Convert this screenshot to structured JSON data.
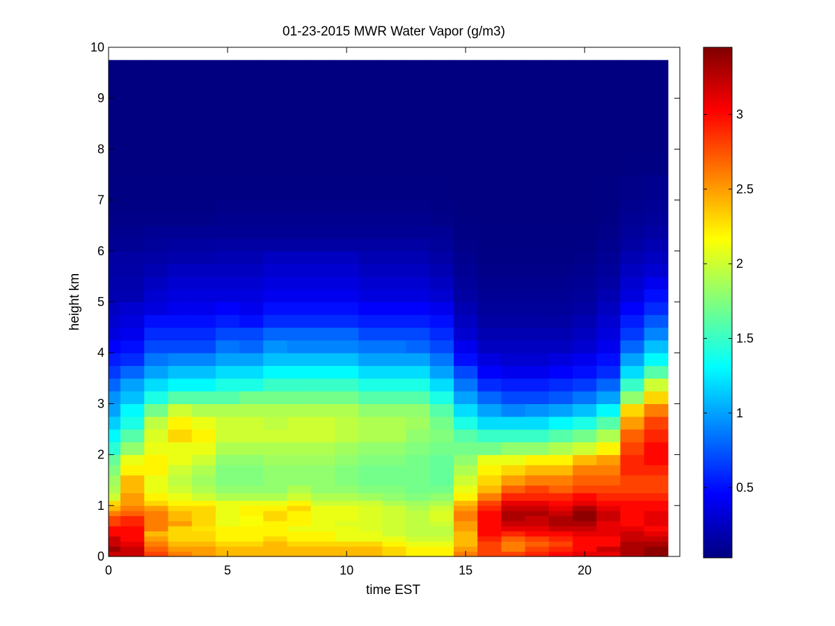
{
  "chart_data": {
    "type": "heatmap",
    "title": "01-23-2015 MWR Water Vapor (g/m3)",
    "xlabel": "time EST",
    "ylabel": "height km",
    "xlim": [
      0,
      24
    ],
    "ylim": [
      0,
      10
    ],
    "x_ticks": [
      0,
      5,
      10,
      15,
      20
    ],
    "y_ticks": [
      0,
      1,
      2,
      3,
      4,
      5,
      6,
      7,
      8,
      9,
      10
    ],
    "colorbar": {
      "colormap": "jet",
      "range": [
        0.03,
        3.45
      ],
      "ticks": [
        0.5,
        1,
        1.5,
        2,
        2.5,
        3
      ]
    },
    "time_edges": [
      0,
      0.5,
      1.5,
      2.5,
      3.5,
      4.5,
      5.5,
      6.5,
      7.5,
      8.5,
      9.5,
      10.5,
      11.5,
      12.5,
      13.5,
      14.5,
      15.5,
      16.5,
      17.5,
      18.5,
      19.5,
      20.5,
      21.5,
      22.5,
      23.5
    ],
    "height_km": [
      0,
      0.1,
      0.2,
      0.3,
      0.4,
      0.5,
      0.6,
      0.7,
      0.8,
      0.9,
      1.0,
      1.1,
      1.25,
      1.4,
      1.6,
      1.8,
      2.0,
      2.25,
      2.5,
      2.75,
      3.0,
      3.25,
      3.5,
      3.75,
      4.0,
      4.25,
      4.5,
      4.75,
      5.0,
      5.25,
      5.5,
      5.75,
      6.0,
      6.25,
      6.5,
      6.75,
      7.0,
      7.5,
      8.0,
      8.5,
      9.0,
      9.75
    ],
    "values": [
      [
        3.2,
        3.35,
        3.2,
        3.2,
        3.0,
        3.0,
        2.8,
        2.8,
        2.6,
        2.4,
        2.3,
        2.0,
        1.9,
        1.85,
        1.75,
        1.65,
        1.45,
        1.3,
        1.15,
        1.0,
        0.95,
        0.8,
        0.65,
        0.55,
        0.45,
        0.35,
        0.3,
        0.25,
        0.2,
        0.18,
        0.16,
        0.15,
        0.1,
        0.08,
        0.06,
        0.05,
        0.04,
        0.03,
        0.03,
        0.03,
        0.03
      ],
      [
        3.2,
        3.2,
        3.1,
        3.0,
        3.0,
        3.0,
        2.9,
        2.9,
        2.7,
        2.6,
        2.5,
        2.5,
        2.4,
        2.4,
        2.2,
        2.1,
        1.8,
        1.6,
        1.4,
        1.3,
        1.1,
        1.0,
        0.8,
        0.6,
        0.5,
        0.4,
        0.35,
        0.3,
        0.2,
        0.18,
        0.16,
        0.15,
        0.1,
        0.08,
        0.06,
        0.05,
        0.04,
        0.03,
        0.03,
        0.03,
        0.03
      ],
      [
        2.8,
        2.7,
        2.6,
        2.5,
        2.4,
        2.6,
        2.6,
        2.6,
        2.6,
        2.5,
        2.3,
        2.2,
        2.1,
        2.1,
        2.2,
        2.2,
        2.1,
        2.05,
        1.95,
        1.7,
        1.4,
        1.2,
        1.0,
        0.85,
        0.7,
        0.6,
        0.5,
        0.35,
        0.3,
        0.25,
        0.2,
        0.16,
        0.12,
        0.1,
        0.06,
        0.05,
        0.04,
        0.03,
        0.03,
        0.03,
        0.03
      ],
      [
        2.6,
        2.5,
        2.4,
        2.3,
        2.3,
        2.3,
        2.5,
        2.4,
        2.4,
        2.3,
        2.2,
        2.1,
        2.0,
        1.95,
        2.0,
        2.1,
        2.1,
        2.3,
        2.2,
        2.0,
        1.6,
        1.3,
        1.1,
        0.9,
        0.7,
        0.6,
        0.5,
        0.4,
        0.35,
        0.3,
        0.25,
        0.18,
        0.14,
        0.1,
        0.06,
        0.05,
        0.04,
        0.03,
        0.03,
        0.03,
        0.03
      ],
      [
        2.5,
        2.5,
        2.4,
        2.3,
        2.3,
        2.25,
        2.3,
        2.3,
        2.3,
        2.3,
        2.2,
        2.0,
        1.9,
        1.85,
        1.9,
        2.0,
        2.1,
        2.2,
        2.1,
        1.9,
        1.6,
        1.3,
        1.1,
        0.9,
        0.7,
        0.6,
        0.5,
        0.4,
        0.35,
        0.3,
        0.25,
        0.18,
        0.14,
        0.1,
        0.06,
        0.05,
        0.04,
        0.03,
        0.03,
        0.03,
        0.03
      ],
      [
        2.4,
        2.4,
        2.3,
        2.2,
        2.2,
        2.2,
        2.1,
        2.1,
        2.1,
        2.1,
        2.1,
        1.9,
        1.8,
        1.75,
        1.75,
        1.8,
        1.9,
        2.0,
        2.0,
        1.9,
        1.6,
        1.4,
        1.2,
        1.0,
        0.85,
        0.7,
        0.55,
        0.45,
        0.35,
        0.3,
        0.25,
        0.2,
        0.15,
        0.1,
        0.08,
        0.06,
        0.04,
        0.03,
        0.03,
        0.03,
        0.03
      ],
      [
        2.4,
        2.4,
        2.3,
        2.2,
        2.2,
        2.2,
        2.15,
        2.15,
        2.2,
        2.2,
        2.1,
        1.9,
        1.8,
        1.75,
        1.75,
        1.8,
        1.9,
        2.0,
        2.0,
        1.9,
        1.7,
        1.4,
        1.2,
        1.0,
        0.8,
        0.7,
        0.5,
        0.4,
        0.35,
        0.3,
        0.25,
        0.2,
        0.15,
        0.1,
        0.08,
        0.06,
        0.04,
        0.03,
        0.03,
        0.03,
        0.03
      ],
      [
        2.4,
        2.4,
        2.4,
        2.3,
        2.2,
        2.2,
        2.2,
        2.3,
        2.3,
        2.2,
        2.1,
        1.9,
        1.8,
        1.8,
        1.8,
        1.85,
        1.9,
        2.0,
        1.95,
        1.9,
        1.7,
        1.5,
        1.3,
        1.1,
        0.95,
        0.8,
        0.6,
        0.5,
        0.4,
        0.35,
        0.3,
        0.25,
        0.15,
        0.1,
        0.08,
        0.06,
        0.04,
        0.03,
        0.03,
        0.03,
        0.03
      ],
      [
        2.4,
        2.4,
        2.3,
        2.2,
        2.2,
        2.1,
        2.2,
        2.2,
        2.2,
        2.3,
        2.2,
        2.0,
        1.9,
        1.8,
        1.8,
        1.85,
        1.9,
        2.0,
        2.0,
        1.9,
        1.7,
        1.5,
        1.3,
        1.1,
        0.9,
        0.8,
        0.6,
        0.5,
        0.4,
        0.35,
        0.3,
        0.25,
        0.15,
        0.1,
        0.08,
        0.06,
        0.04,
        0.03,
        0.03,
        0.03,
        0.03
      ],
      [
        2.4,
        2.4,
        2.3,
        2.2,
        2.2,
        2.1,
        2.1,
        2.1,
        2.1,
        2.1,
        2.0,
        1.9,
        1.8,
        1.8,
        1.8,
        1.85,
        1.9,
        2.0,
        2.0,
        1.9,
        1.7,
        1.5,
        1.3,
        1.1,
        0.9,
        0.8,
        0.6,
        0.5,
        0.4,
        0.35,
        0.3,
        0.25,
        0.15,
        0.1,
        0.08,
        0.06,
        0.04,
        0.03,
        0.03,
        0.03,
        0.03
      ],
      [
        2.4,
        2.4,
        2.3,
        2.1,
        2.1,
        2.1,
        2.05,
        2.1,
        2.1,
        2.1,
        2.0,
        1.9,
        1.8,
        1.75,
        1.75,
        1.8,
        1.85,
        1.95,
        1.95,
        1.9,
        1.7,
        1.5,
        1.3,
        1.1,
        0.9,
        0.8,
        0.6,
        0.5,
        0.4,
        0.35,
        0.3,
        0.25,
        0.15,
        0.1,
        0.08,
        0.06,
        0.04,
        0.03,
        0.03,
        0.03,
        0.03
      ],
      [
        2.4,
        2.4,
        2.3,
        2.1,
        2.1,
        2.05,
        2.05,
        2.05,
        2.05,
        2.05,
        2.0,
        1.85,
        1.75,
        1.7,
        1.7,
        1.75,
        1.8,
        1.9,
        1.9,
        1.8,
        1.6,
        1.4,
        1.2,
        1.0,
        0.85,
        0.7,
        0.55,
        0.45,
        0.35,
        0.3,
        0.25,
        0.2,
        0.15,
        0.1,
        0.08,
        0.06,
        0.04,
        0.03,
        0.03,
        0.03,
        0.03
      ],
      [
        2.3,
        2.3,
        2.2,
        2.1,
        2.0,
        2.0,
        2.0,
        2.0,
        2.0,
        2.0,
        1.9,
        1.8,
        1.75,
        1.7,
        1.7,
        1.75,
        1.8,
        1.9,
        1.9,
        1.8,
        1.6,
        1.4,
        1.2,
        1.0,
        0.85,
        0.7,
        0.55,
        0.45,
        0.35,
        0.3,
        0.25,
        0.2,
        0.15,
        0.1,
        0.08,
        0.06,
        0.04,
        0.03,
        0.03,
        0.03,
        0.03
      ],
      [
        2.2,
        2.2,
        2.1,
        2.0,
        1.95,
        1.95,
        1.95,
        1.95,
        1.95,
        1.9,
        1.85,
        1.75,
        1.7,
        1.7,
        1.7,
        1.7,
        1.75,
        1.8,
        1.85,
        1.8,
        1.6,
        1.4,
        1.2,
        1.0,
        0.8,
        0.7,
        0.55,
        0.45,
        0.35,
        0.3,
        0.25,
        0.2,
        0.15,
        0.1,
        0.08,
        0.06,
        0.04,
        0.03,
        0.03,
        0.03,
        0.03
      ],
      [
        2.2,
        2.2,
        2.1,
        2.0,
        1.95,
        1.95,
        2.0,
        2.05,
        2.05,
        2.0,
        1.9,
        1.8,
        1.7,
        1.65,
        1.65,
        1.65,
        1.7,
        1.75,
        1.7,
        1.6,
        1.4,
        1.2,
        1.0,
        0.85,
        0.7,
        0.6,
        0.5,
        0.4,
        0.3,
        0.25,
        0.2,
        0.16,
        0.12,
        0.1,
        0.06,
        0.05,
        0.04,
        0.03,
        0.03,
        0.03,
        0.03
      ],
      [
        2.6,
        2.5,
        2.4,
        2.4,
        2.4,
        2.5,
        2.5,
        2.6,
        2.6,
        2.5,
        2.4,
        2.2,
        2.1,
        2.0,
        1.9,
        1.8,
        1.7,
        1.6,
        1.4,
        1.2,
        1.0,
        0.85,
        0.7,
        0.5,
        0.4,
        0.3,
        0.25,
        0.2,
        0.15,
        0.12,
        0.1,
        0.08,
        0.06,
        0.05,
        0.04,
        0.03,
        0.03,
        0.03,
        0.03,
        0.03,
        0.03
      ],
      [
        2.8,
        2.8,
        2.8,
        2.9,
        3.0,
        3.0,
        3.0,
        3.0,
        3.0,
        2.9,
        2.8,
        2.6,
        2.4,
        2.3,
        2.2,
        2.1,
        1.7,
        1.5,
        1.2,
        1.0,
        0.8,
        0.6,
        0.45,
        0.35,
        0.25,
        0.2,
        0.15,
        0.12,
        0.1,
        0.08,
        0.06,
        0.05,
        0.04,
        0.04,
        0.03,
        0.03,
        0.03,
        0.03,
        0.03,
        0.03,
        0.03
      ],
      [
        2.8,
        2.6,
        2.6,
        2.7,
        2.9,
        3.1,
        3.2,
        3.3,
        3.3,
        3.2,
        3.1,
        2.9,
        2.7,
        2.5,
        2.3,
        2.1,
        1.8,
        1.5,
        1.2,
        0.9,
        0.7,
        0.55,
        0.4,
        0.3,
        0.25,
        0.2,
        0.15,
        0.12,
        0.1,
        0.08,
        0.06,
        0.05,
        0.04,
        0.04,
        0.03,
        0.03,
        0.03,
        0.03,
        0.03,
        0.03,
        0.03
      ],
      [
        2.9,
        2.8,
        2.7,
        2.8,
        3.0,
        3.1,
        3.2,
        3.2,
        3.3,
        3.2,
        3.1,
        2.9,
        2.8,
        2.6,
        2.4,
        2.2,
        1.8,
        1.5,
        1.2,
        0.95,
        0.7,
        0.55,
        0.4,
        0.3,
        0.25,
        0.2,
        0.15,
        0.12,
        0.1,
        0.08,
        0.06,
        0.05,
        0.04,
        0.04,
        0.03,
        0.03,
        0.03,
        0.03,
        0.03,
        0.03,
        0.03
      ],
      [
        3.0,
        2.9,
        2.8,
        2.9,
        3.0,
        3.2,
        3.3,
        3.3,
        3.2,
        3.1,
        3.0,
        2.9,
        2.7,
        2.6,
        2.4,
        2.2,
        1.9,
        1.6,
        1.3,
        1.0,
        0.75,
        0.6,
        0.45,
        0.35,
        0.25,
        0.2,
        0.15,
        0.12,
        0.1,
        0.08,
        0.06,
        0.05,
        0.04,
        0.04,
        0.03,
        0.03,
        0.03,
        0.03,
        0.03,
        0.03,
        0.03
      ],
      [
        3.1,
        3.0,
        3.0,
        3.0,
        3.1,
        3.2,
        3.3,
        3.4,
        3.4,
        3.3,
        3.1,
        3.0,
        2.8,
        2.7,
        2.6,
        2.4,
        2.0,
        1.7,
        1.4,
        1.1,
        0.85,
        0.65,
        0.5,
        0.4,
        0.3,
        0.25,
        0.2,
        0.15,
        0.12,
        0.1,
        0.08,
        0.06,
        0.05,
        0.04,
        0.03,
        0.03,
        0.03,
        0.03,
        0.03,
        0.03,
        0.03
      ],
      [
        3.1,
        3.2,
        3.0,
        3.0,
        3.1,
        3.1,
        3.1,
        3.2,
        3.2,
        3.1,
        3.0,
        2.9,
        2.8,
        2.7,
        2.6,
        2.5,
        2.2,
        1.9,
        1.6,
        1.3,
        1.0,
        0.8,
        0.6,
        0.5,
        0.4,
        0.35,
        0.3,
        0.25,
        0.2,
        0.15,
        0.12,
        0.1,
        0.08,
        0.06,
        0.05,
        0.04,
        0.04,
        0.03,
        0.03,
        0.03,
        0.03
      ],
      [
        3.3,
        3.3,
        3.3,
        3.2,
        3.2,
        3.1,
        3.0,
        3.0,
        3.0,
        3.0,
        3.0,
        2.9,
        2.8,
        2.8,
        2.9,
        2.9,
        2.8,
        2.7,
        2.5,
        2.3,
        1.8,
        1.5,
        1.2,
        1.0,
        0.8,
        0.65,
        0.55,
        0.45,
        0.35,
        0.3,
        0.25,
        0.2,
        0.15,
        0.12,
        0.1,
        0.08,
        0.06,
        0.04,
        0.03,
        0.03,
        0.03
      ],
      [
        3.4,
        3.4,
        3.3,
        3.2,
        3.1,
        3.0,
        3.1,
        3.1,
        3.1,
        3.0,
        3.0,
        2.9,
        2.8,
        2.8,
        2.9,
        3.0,
        3.0,
        2.9,
        2.8,
        2.6,
        2.3,
        2.0,
        1.6,
        1.3,
        1.1,
        0.9,
        0.75,
        0.6,
        0.5,
        0.4,
        0.3,
        0.25,
        0.2,
        0.15,
        0.12,
        0.1,
        0.08,
        0.04,
        0.03,
        0.03,
        0.03
      ]
    ]
  }
}
